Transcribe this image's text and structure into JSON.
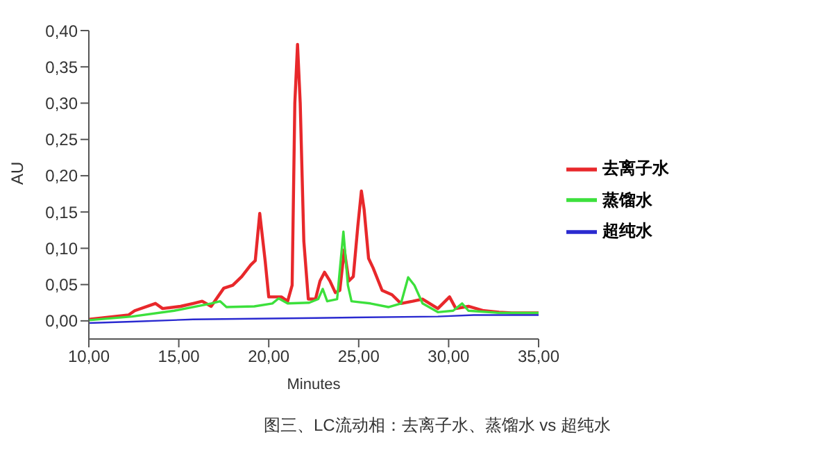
{
  "chart_data": {
    "type": "line",
    "xlabel": "Minutes",
    "ylabel": "AU",
    "xlim": [
      10,
      35
    ],
    "xticks": [
      {
        "value": 10,
        "label": "10,00"
      },
      {
        "value": 15,
        "label": "15,00"
      },
      {
        "value": 20,
        "label": "20,00"
      },
      {
        "value": 25,
        "label": "25,00"
      },
      {
        "value": 30,
        "label": "30,00"
      },
      {
        "value": 35,
        "label": "35,00"
      }
    ],
    "ylim": [
      -0.025,
      0.4
    ],
    "yticks": [
      {
        "value": 0,
        "label": "0,00"
      },
      {
        "value": 0.05,
        "label": "0,05"
      },
      {
        "value": 0.1,
        "label": "0,10"
      },
      {
        "value": 0.15,
        "label": "0,15"
      },
      {
        "value": 0.2,
        "label": "0,20"
      },
      {
        "value": 0.25,
        "label": "0,25"
      },
      {
        "value": 0.3,
        "label": "0,30"
      },
      {
        "value": 0.35,
        "label": "0,35"
      },
      {
        "value": 0.4,
        "label": "0,40"
      }
    ],
    "grid": false,
    "legend": "right",
    "marker": "none",
    "line_style": "solid",
    "annotations": [
      "图三、LC流动相：去离子水、蒸馏水 vs 超纯水"
    ],
    "series": [
      {
        "name": "去离子水",
        "color": "#e8282b",
        "x": [
          10,
          12.2,
          12.55,
          13.7,
          14.1,
          15.1,
          15.8,
          16.3,
          16.8,
          17.5,
          18,
          18.5,
          19,
          19.25,
          19.5,
          19.8,
          20,
          20.7,
          21.05,
          21.3,
          21.45,
          21.6,
          21.75,
          21.95,
          22.2,
          22.6,
          22.85,
          23.1,
          23.4,
          23.7,
          23.95,
          24.2,
          24.45,
          24.7,
          24.95,
          25.15,
          25.3,
          25.55,
          25.8,
          26.3,
          26.85,
          27.35,
          28,
          28.55,
          29.4,
          30.05,
          30.4,
          31.1,
          31.95,
          32.8,
          33.5,
          35
        ],
        "values": [
          0.002,
          0.008,
          0.014,
          0.024,
          0.017,
          0.02,
          0.024,
          0.027,
          0.02,
          0.045,
          0.049,
          0.061,
          0.077,
          0.083,
          0.148,
          0.083,
          0.033,
          0.033,
          0.027,
          0.049,
          0.3,
          0.381,
          0.3,
          0.11,
          0.03,
          0.03,
          0.055,
          0.067,
          0.055,
          0.039,
          0.042,
          0.098,
          0.055,
          0.061,
          0.13,
          0.179,
          0.154,
          0.086,
          0.073,
          0.042,
          0.036,
          0.024,
          0.027,
          0.03,
          0.017,
          0.033,
          0.017,
          0.02,
          0.014,
          0.012,
          0.011,
          0.011
        ]
      },
      {
        "name": "蒸馏水",
        "color": "#3ce03c",
        "x": [
          10,
          12.4,
          14.75,
          16.8,
          17.3,
          17.65,
          19.2,
          20.2,
          20.55,
          21.05,
          22.25,
          22.75,
          23,
          23.25,
          23.8,
          24.15,
          24.4,
          24.6,
          25.65,
          26.65,
          27.35,
          27.75,
          28.1,
          28.55,
          29.4,
          30.25,
          30.75,
          31.1,
          32.8,
          35
        ],
        "values": [
          0.001,
          0.006,
          0.014,
          0.024,
          0.027,
          0.019,
          0.02,
          0.024,
          0.031,
          0.024,
          0.025,
          0.03,
          0.044,
          0.027,
          0.03,
          0.123,
          0.049,
          0.027,
          0.024,
          0.019,
          0.024,
          0.06,
          0.049,
          0.024,
          0.012,
          0.014,
          0.024,
          0.014,
          0.011,
          0.011
        ]
      },
      {
        "name": "超纯水",
        "color": "#2a2ad0",
        "x": [
          10,
          12.4,
          15.8,
          22.6,
          29.4,
          31.4,
          35
        ],
        "values": [
          -0.003,
          -0.001,
          0.002,
          0.004,
          0.006,
          0.008,
          0.008
        ]
      }
    ]
  }
}
